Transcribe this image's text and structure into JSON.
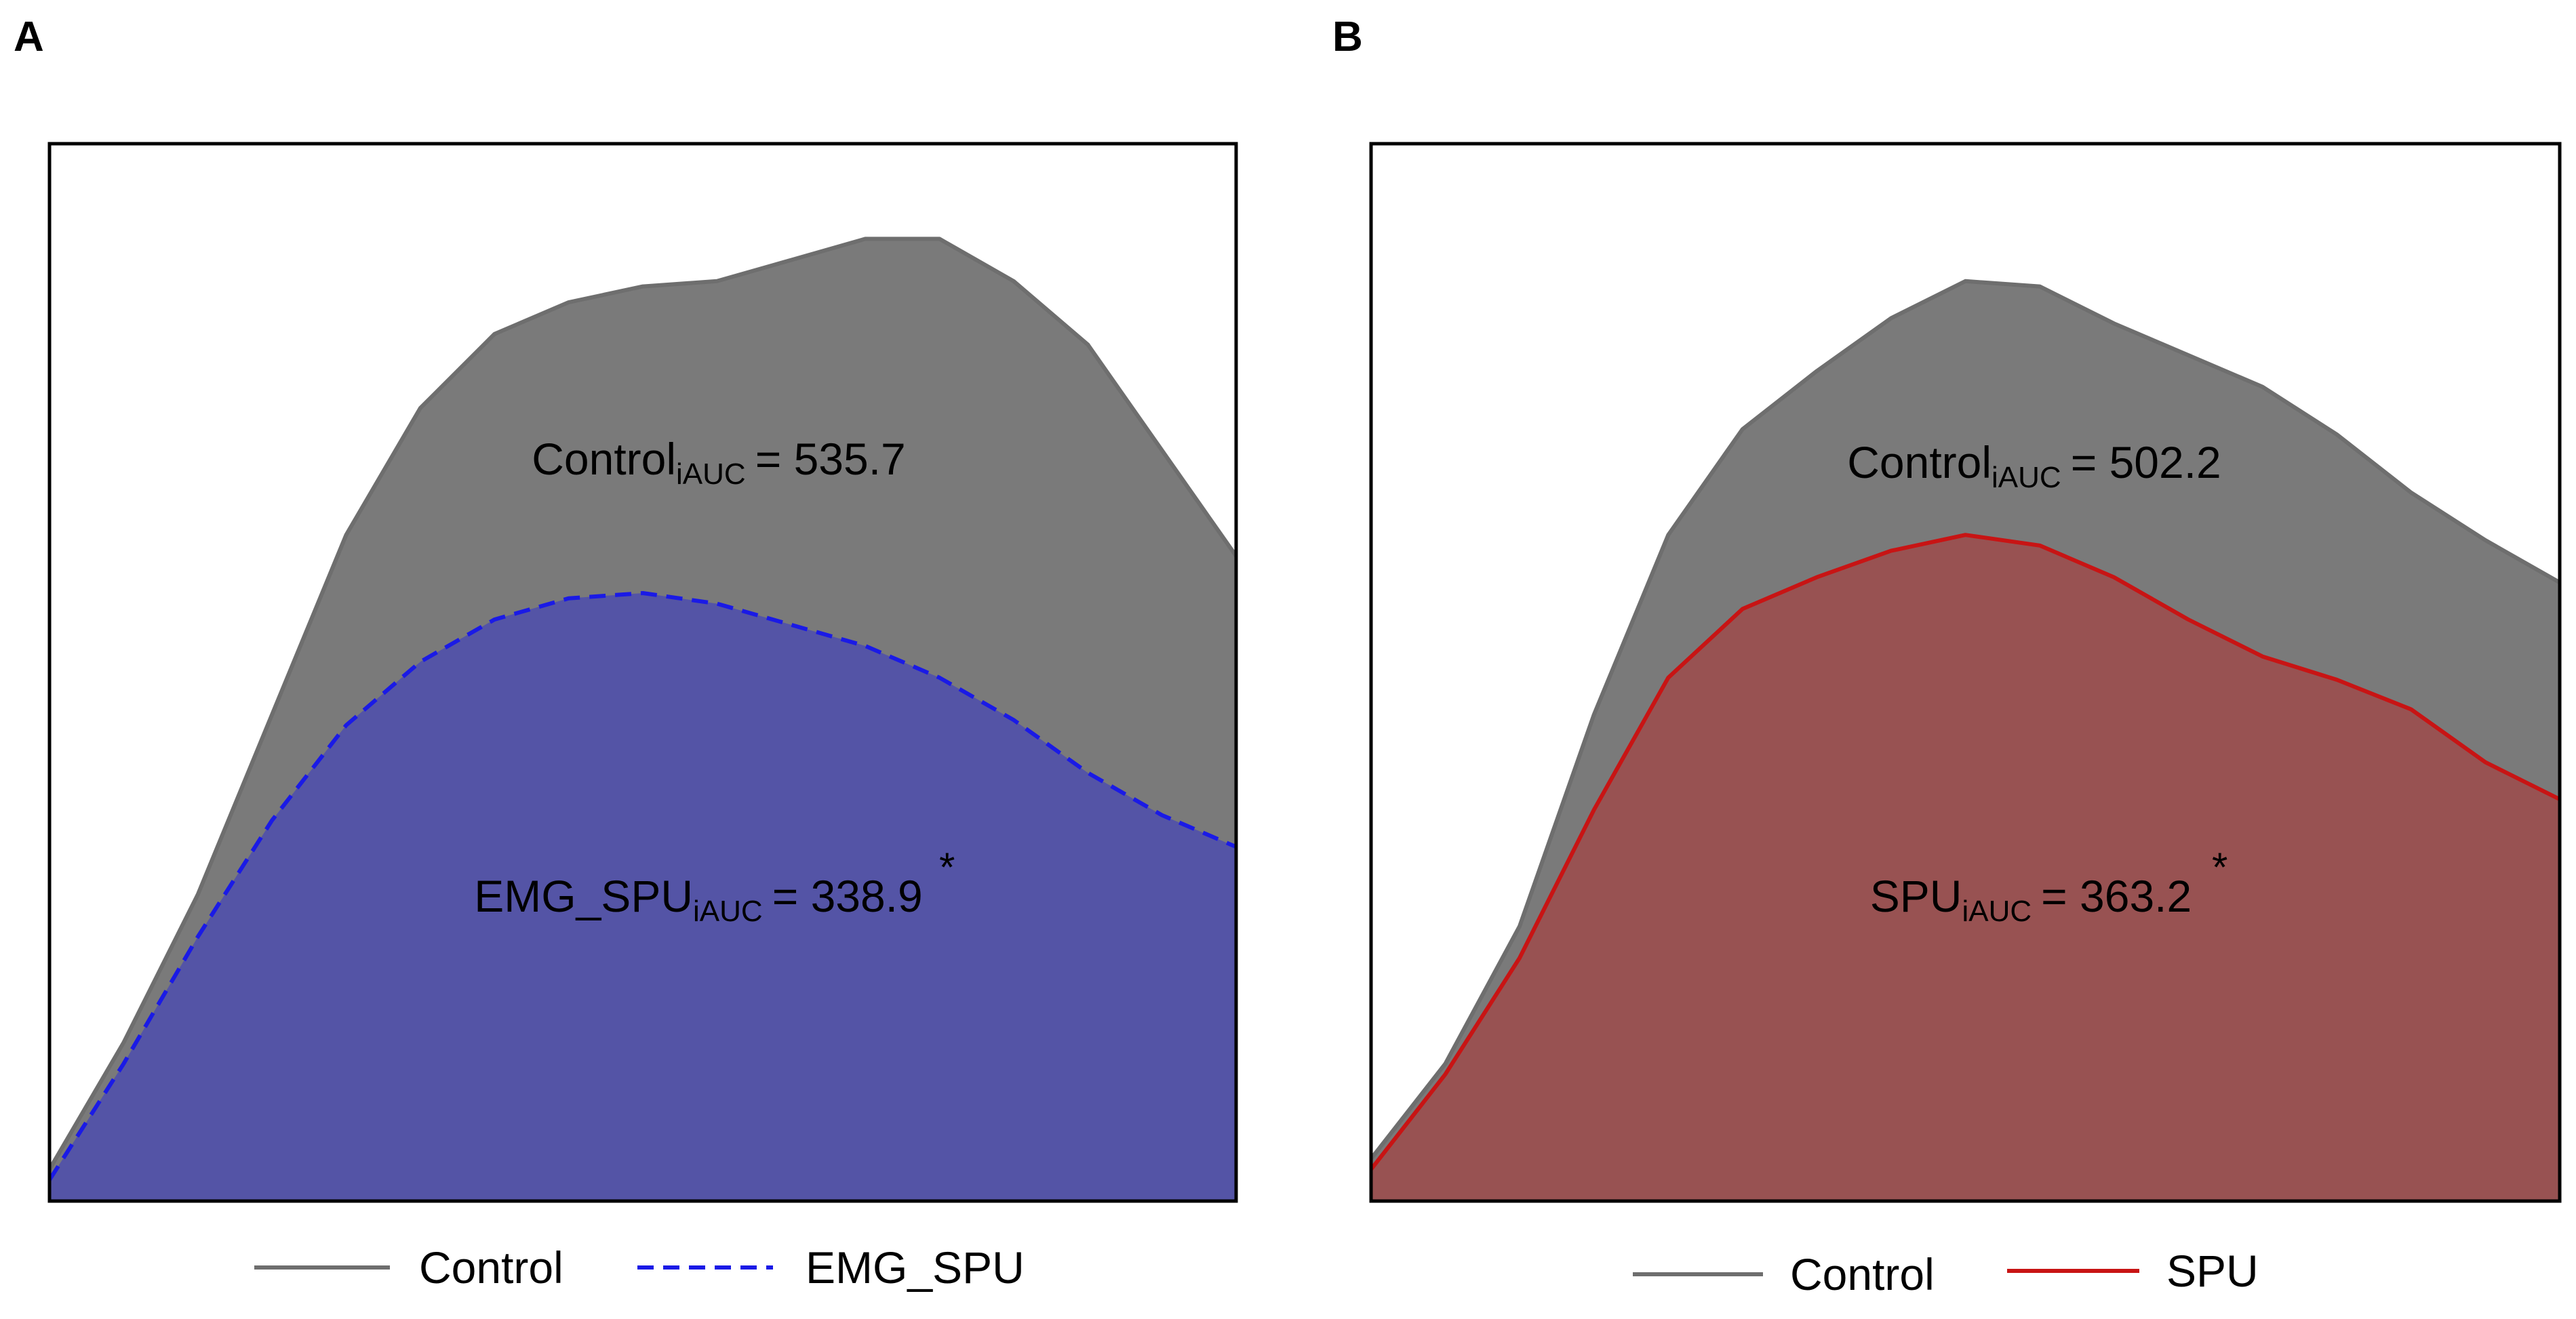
{
  "panels": [
    {
      "letter": "A",
      "annotations": {
        "upper": {
          "name": "Control",
          "sub": "iAUC",
          "value": "= 535.7"
        },
        "lower": {
          "name": "EMG_SPU",
          "sub": "iAUC",
          "value": "= 338.9",
          "sig": "*"
        }
      },
      "legend": [
        {
          "label": "Control",
          "color": "#6e6e6e",
          "dash": false
        },
        {
          "label": "EMG_SPU",
          "color": "#1a1ae6",
          "dash": true
        }
      ]
    },
    {
      "letter": "B",
      "annotations": {
        "upper": {
          "name": "Control",
          "sub": "iAUC",
          "value": "= 502.2"
        },
        "lower": {
          "name": "SPU",
          "sub": "iAUC",
          "value": "= 363.2",
          "sig": "*"
        }
      },
      "legend": [
        {
          "label": "Control",
          "color": "#6e6e6e",
          "dash": false
        },
        {
          "label": "SPU",
          "color": "#c81414",
          "dash": false
        }
      ]
    }
  ],
  "chart_data": [
    {
      "type": "area",
      "x": [
        0,
        1,
        2,
        3,
        4,
        5,
        6,
        7,
        8,
        9,
        10,
        11,
        12,
        13,
        14,
        15,
        16
      ],
      "ylim": [
        0,
        100
      ],
      "series": [
        {
          "name": "Control",
          "color": "#7a7a7a",
          "line": "#6e6e6e",
          "dash": false,
          "values": [
            3,
            15,
            29,
            46,
            63,
            75,
            82,
            85,
            86.5,
            87,
            89,
            91,
            91,
            87,
            81,
            71,
            61
          ]
        },
        {
          "name": "EMG_SPU",
          "color": "#5454a6",
          "line": "#1a1ae6",
          "dash": true,
          "values": [
            2,
            13,
            25,
            36,
            45,
            51,
            55,
            57,
            57.5,
            56.5,
            54.5,
            52.5,
            49.5,
            45.5,
            40.5,
            36.5,
            33.5
          ]
        }
      ]
    },
    {
      "type": "area",
      "x": [
        0,
        1,
        2,
        3,
        4,
        5,
        6,
        7,
        8,
        9,
        10,
        11,
        12,
        13,
        14,
        15,
        16
      ],
      "ylim": [
        0,
        100
      ],
      "series": [
        {
          "name": "Control",
          "color": "#7a7a7a",
          "line": "#6e6e6e",
          "dash": false,
          "values": [
            4,
            13,
            26,
            46,
            63,
            73,
            78.5,
            83.5,
            87,
            86.5,
            83,
            80,
            77,
            72.5,
            67,
            62.5,
            58.5
          ]
        },
        {
          "name": "SPU",
          "color": "#985252",
          "line": "#c81414",
          "dash": false,
          "values": [
            3,
            12,
            23,
            37,
            49.5,
            56,
            59,
            61.5,
            63,
            62,
            59,
            55,
            51.5,
            49.3,
            46.5,
            41.5,
            38
          ]
        }
      ]
    }
  ]
}
